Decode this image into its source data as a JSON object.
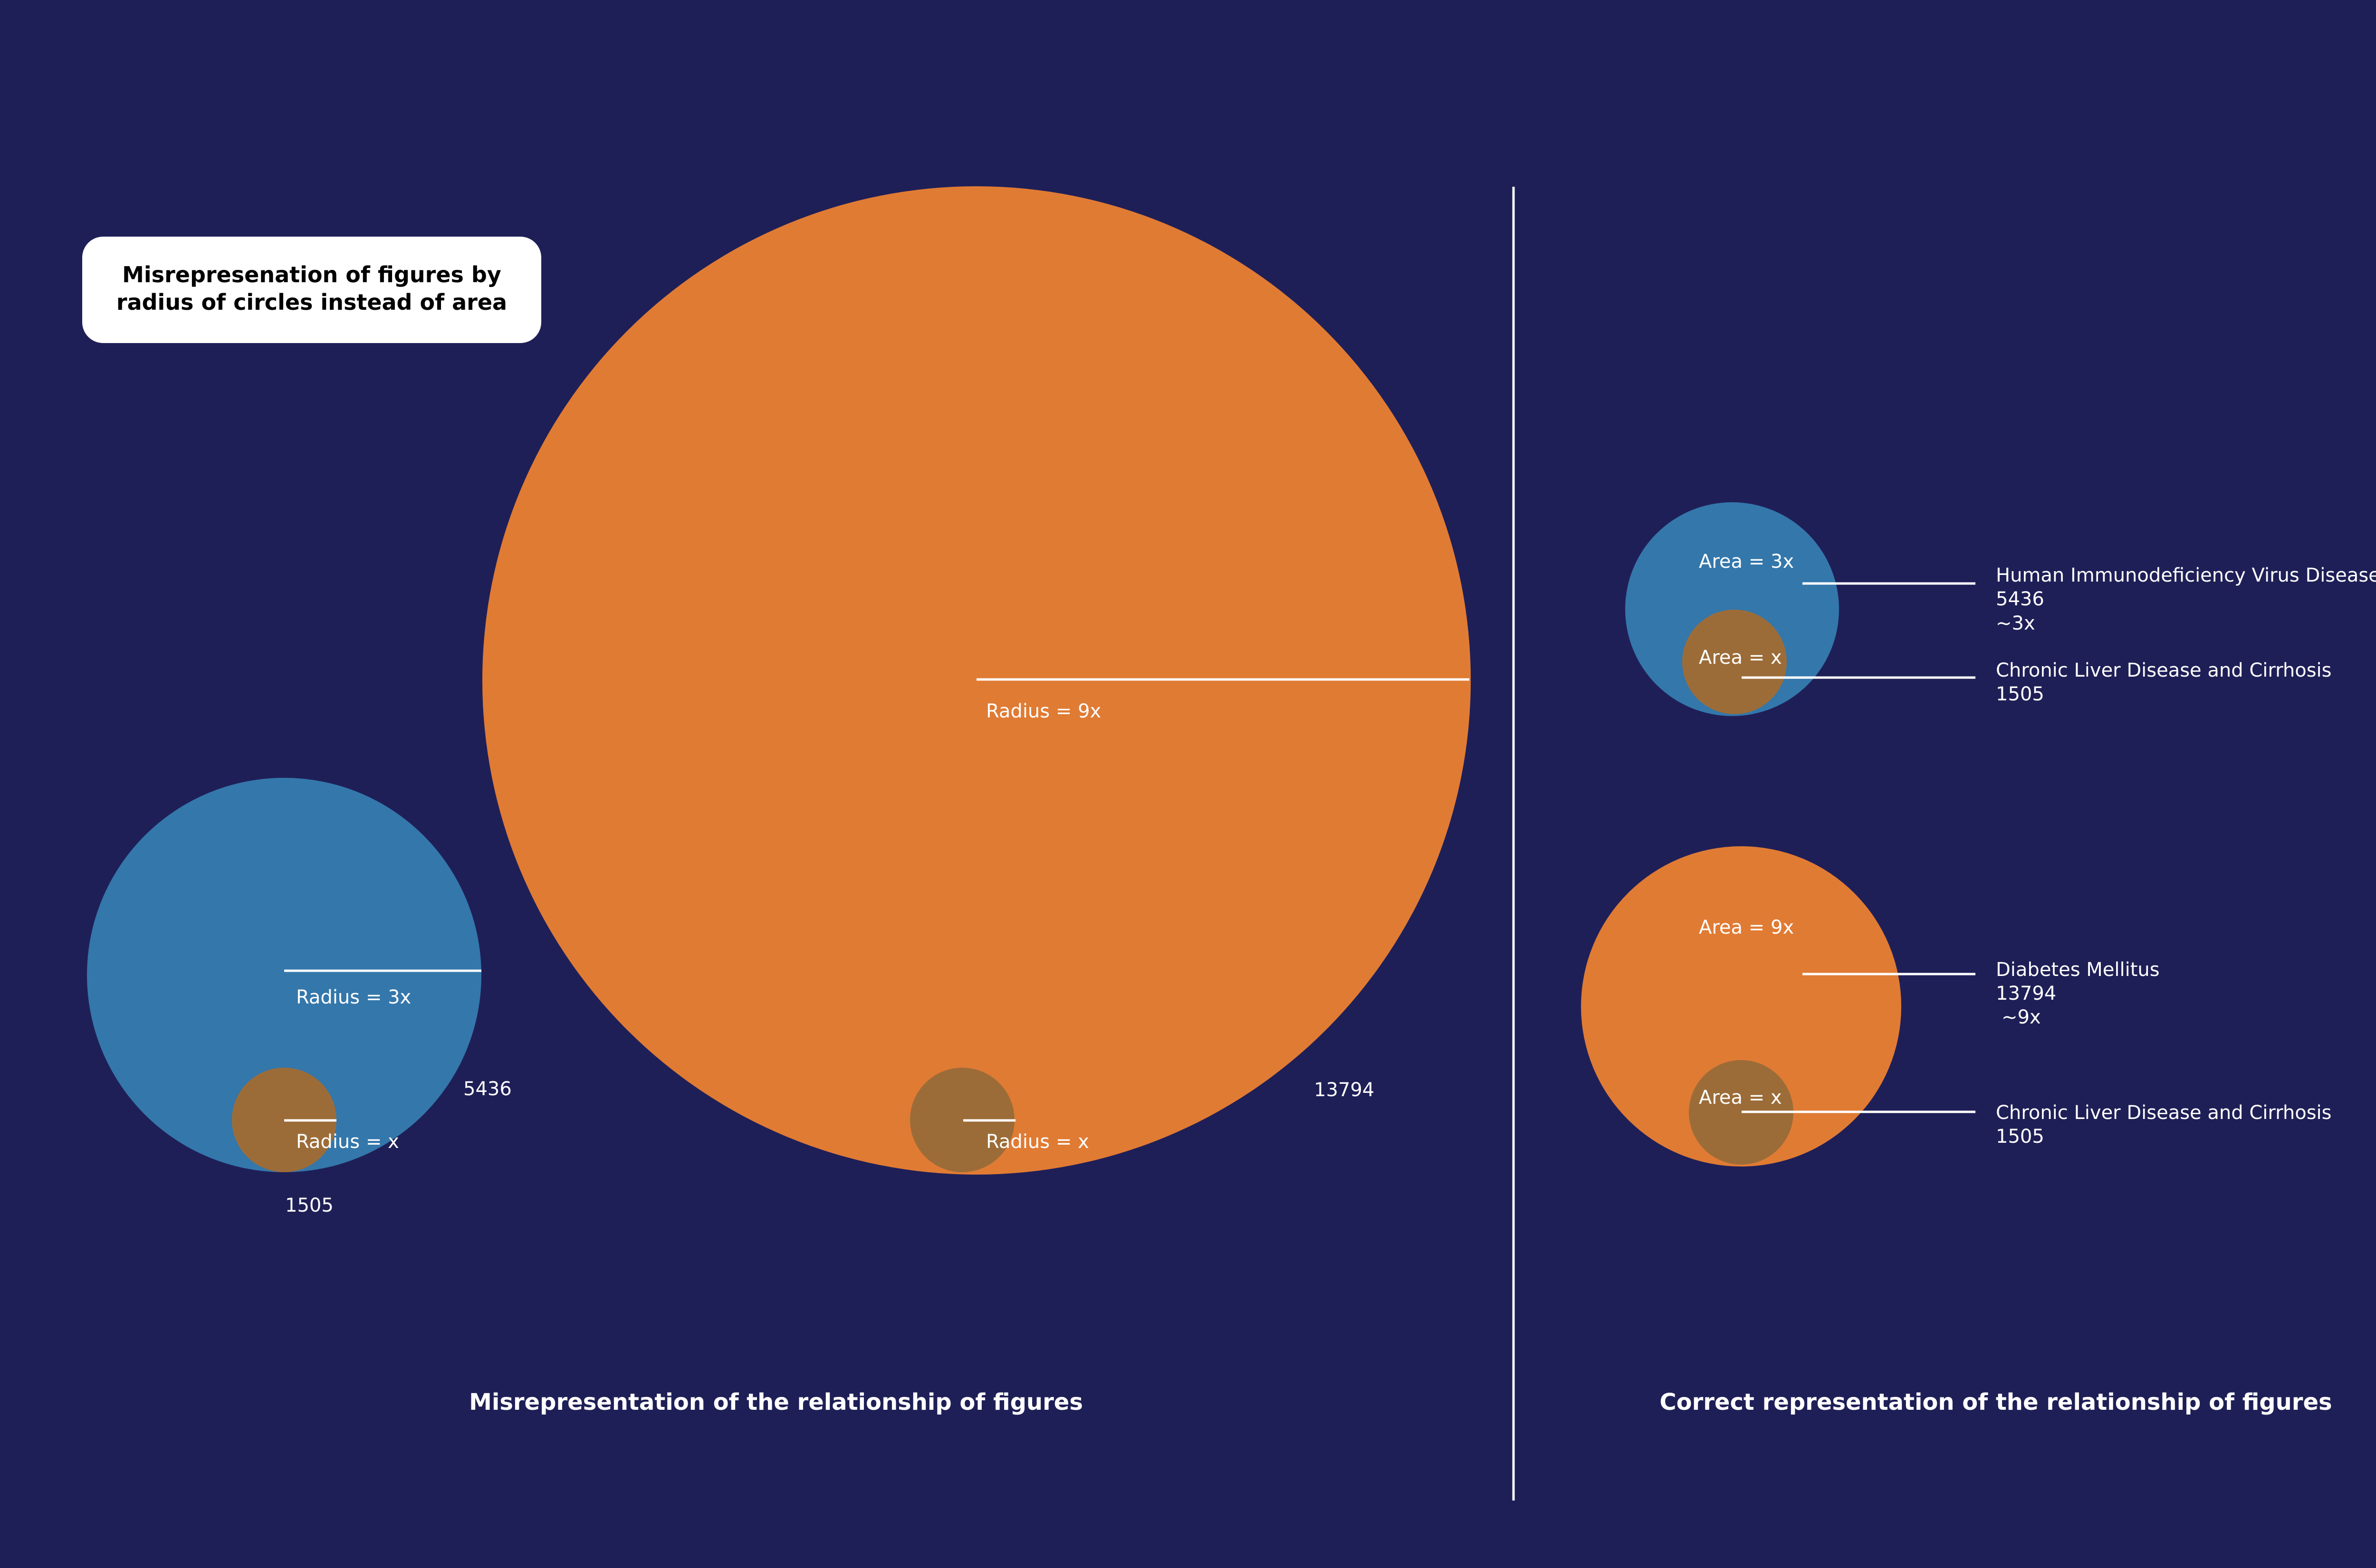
{
  "title_box": {
    "line1": "Misrepresenation of figures by",
    "line2": "radius of circles instead of area"
  },
  "left_panel": {
    "heading": "Misrepresentation of the relationship of figures",
    "hiv_radius_label": "Radius = 3x",
    "small_radius_label_1": "Radius = x",
    "hiv_value": "5436",
    "cld_value": "1505",
    "diabetes_radius_label": "Radius = 9x",
    "small_radius_label_2": "Radius = x",
    "diabetes_value": "13794"
  },
  "right_panel": {
    "heading": "Correct representation of the relationship of figures",
    "hiv_area_label": "Area = 3x",
    "cld_area_label_1": "Area = x",
    "hiv_name": "Human Immunodeficiency Virus Disease",
    "hiv_value": "5436",
    "hiv_ratio": "~3x",
    "cld_name_1": "Chronic Liver Disease and Cirrhosis",
    "cld_value_1": "1505",
    "diabetes_area_label": "Area = 9x",
    "cld_area_label_2": "Area = x",
    "diabetes_name": "Diabetes Mellitus",
    "diabetes_value": "13794",
    "diabetes_ratio": "~9x",
    "cld_name_2": "Chronic Liver Disease and Cirrhosis",
    "cld_value_2": "1505"
  },
  "colors": {
    "background": "#1f1f57",
    "hiv_blue": "#3477ab",
    "diabetes_orange": "#e07b34",
    "liver_brown": "#9c6c38",
    "text": "#ffffff"
  }
}
